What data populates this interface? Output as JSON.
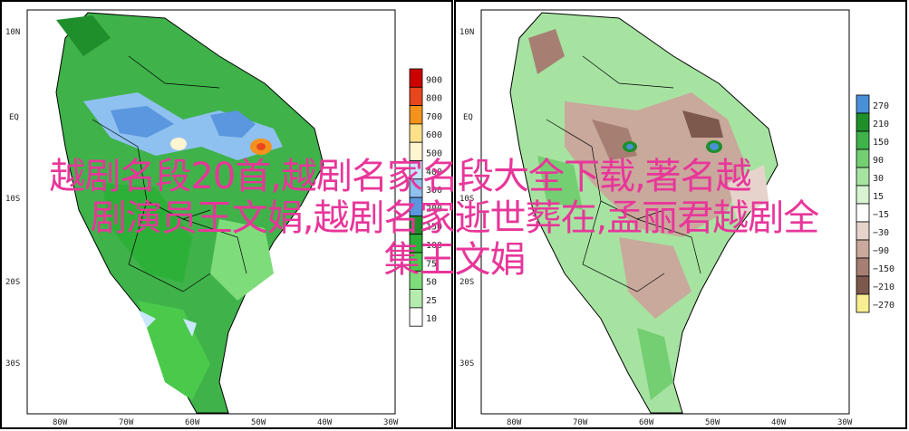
{
  "left_map": {
    "lat_labels": [
      "10N",
      "EQ",
      "10S",
      "20S",
      "30S"
    ],
    "lon_labels": [
      "80W",
      "70W",
      "60W",
      "50W",
      "40W",
      "30W"
    ],
    "legend": {
      "values": [
        "900",
        "800",
        "700",
        "600",
        "500",
        "400",
        "300",
        "200",
        "150",
        "100",
        "75",
        "50",
        "25",
        "10"
      ],
      "colors": [
        "#cc0000",
        "#e8461c",
        "#f5921e",
        "#ffe08a",
        "#fff5d1",
        "#c9e8ff",
        "#8fc1f0",
        "#5a97df",
        "#1e8f2b",
        "#2db038",
        "#4ac94b",
        "#7edc7a",
        "#b4ecae",
        "#ffffff"
      ]
    }
  },
  "right_map": {
    "lat_labels": [
      "10N",
      "EQ",
      "10S",
      "20S",
      "30S"
    ],
    "lon_labels": [
      "80W",
      "70W",
      "60W",
      "50W",
      "40W",
      "30W"
    ],
    "legend": {
      "values": [
        "270",
        "210",
        "150",
        "90",
        "30",
        "15",
        "−15",
        "−30",
        "−90",
        "−150",
        "−210",
        "−270"
      ],
      "colors": [
        "#4a90d9",
        "#1f8f2a",
        "#3fb24a",
        "#73cf72",
        "#a6e3a1",
        "#d7f3d2",
        "#ffffff",
        "#e6d4cc",
        "#c9a99b",
        "#a67f72",
        "#7d584d",
        "#f7ee92"
      ]
    }
  },
  "overlay_text": {
    "line1": "越剧名段20首,越剧名家名段大全下载,著名越",
    "line2": "剧演员王文娟,越剧名家逝世葬在,孟丽君越剧全",
    "line3": "集王文娟"
  },
  "colors": {
    "overlay": "#e8369a",
    "land_green": "#3fb24a",
    "land_brown": "#b89483",
    "ocean": "#ffffff"
  }
}
